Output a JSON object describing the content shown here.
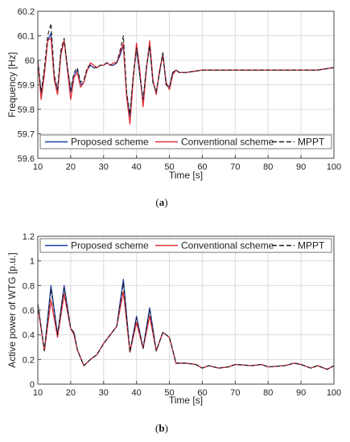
{
  "chart_data": [
    {
      "type": "line",
      "caption_letter": "a",
      "xlabel": "Time [s]",
      "ylabel": "Frequency [Hz]",
      "xlim": [
        10,
        100
      ],
      "ylim": [
        59.6,
        60.2
      ],
      "xticks": [
        "10",
        "20",
        "30",
        "40",
        "50",
        "60",
        "70",
        "80",
        "90",
        "100"
      ],
      "yticks": [
        "59.6",
        "59.7",
        "59.8",
        "59.9",
        "60",
        "60.1",
        "60.2"
      ],
      "grid": true,
      "legend_position": "bottom",
      "series": [
        {
          "name": "Proposed scheme",
          "color": "#1f3fa6",
          "dash": "solid",
          "x": [
            10,
            11,
            12,
            13,
            14,
            15,
            16,
            17,
            18,
            19,
            20,
            21,
            22,
            23,
            24,
            25,
            26,
            27,
            28,
            29,
            30,
            31,
            32,
            33,
            34,
            35,
            36,
            37,
            38,
            39,
            40,
            41,
            42,
            43,
            44,
            45,
            46,
            47,
            48,
            49,
            50,
            51,
            52,
            53,
            55,
            60,
            65,
            70,
            75,
            80,
            85,
            90,
            95,
            100
          ],
          "y": [
            60.0,
            59.86,
            59.95,
            60.08,
            60.11,
            59.93,
            59.87,
            60.03,
            60.08,
            59.97,
            59.87,
            59.94,
            59.96,
            59.9,
            59.91,
            59.96,
            59.98,
            59.97,
            59.97,
            59.98,
            59.98,
            59.99,
            59.98,
            59.98,
            59.99,
            60.02,
            60.06,
            59.86,
            59.77,
            59.93,
            60.05,
            59.94,
            59.83,
            59.97,
            60.06,
            59.91,
            59.87,
            59.95,
            60.03,
            59.9,
            59.89,
            59.95,
            59.96,
            59.95,
            59.95,
            59.96,
            59.96,
            59.96,
            59.96,
            59.96,
            59.96,
            59.96,
            59.96,
            59.97
          ]
        },
        {
          "name": "Conventional scheme",
          "color": "#e0303a",
          "dash": "solid",
          "x": [
            10,
            11,
            12,
            13,
            14,
            15,
            16,
            17,
            18,
            19,
            20,
            21,
            22,
            23,
            24,
            25,
            26,
            27,
            28,
            29,
            30,
            31,
            32,
            33,
            34,
            35,
            36,
            37,
            38,
            39,
            40,
            41,
            42,
            43,
            44,
            45,
            46,
            47,
            48,
            49,
            50,
            51,
            52,
            53,
            55,
            60,
            65,
            70,
            75,
            80,
            85,
            90,
            95,
            100
          ],
          "y": [
            60.0,
            59.84,
            59.94,
            60.08,
            60.09,
            59.92,
            59.86,
            60.02,
            60.08,
            59.96,
            59.84,
            59.93,
            59.95,
            59.89,
            59.91,
            59.96,
            59.99,
            59.98,
            59.97,
            59.98,
            59.98,
            59.99,
            59.98,
            59.99,
            59.99,
            60.03,
            60.07,
            59.85,
            59.74,
            59.92,
            60.07,
            59.96,
            59.81,
            59.96,
            60.08,
            59.92,
            59.86,
            59.96,
            60.02,
            59.91,
            59.88,
            59.94,
            59.96,
            59.95,
            59.95,
            59.96,
            59.96,
            59.96,
            59.96,
            59.96,
            59.96,
            59.96,
            59.96,
            59.97
          ]
        },
        {
          "name": "MPPT",
          "color": "#1a1a1a",
          "dash": "dashed",
          "x": [
            10,
            11,
            12,
            13,
            14,
            15,
            16,
            17,
            18,
            19,
            20,
            21,
            22,
            23,
            24,
            25,
            26,
            27,
            28,
            29,
            30,
            31,
            32,
            33,
            34,
            35,
            36,
            37,
            38,
            39,
            40,
            41,
            42,
            43,
            44,
            45,
            46,
            47,
            48,
            49,
            50,
            51,
            52,
            53,
            55,
            60,
            65,
            70,
            75,
            80,
            85,
            90,
            95,
            100
          ],
          "y": [
            60.0,
            59.87,
            59.97,
            60.1,
            60.15,
            59.94,
            59.88,
            60.04,
            60.09,
            59.97,
            59.88,
            59.95,
            59.97,
            59.91,
            59.92,
            59.97,
            59.98,
            59.97,
            59.97,
            59.98,
            59.98,
            59.99,
            59.98,
            59.98,
            59.99,
            60.04,
            60.1,
            59.87,
            59.78,
            59.94,
            60.05,
            59.94,
            59.84,
            59.97,
            60.06,
            59.91,
            59.87,
            59.95,
            60.03,
            59.9,
            59.89,
            59.95,
            59.96,
            59.95,
            59.95,
            59.96,
            59.96,
            59.96,
            59.96,
            59.96,
            59.96,
            59.96,
            59.96,
            59.97
          ]
        }
      ]
    },
    {
      "type": "line",
      "caption_letter": "b",
      "xlabel": "Time [s]",
      "ylabel": "Active power of WTG [p.u.]",
      "xlim": [
        10,
        100
      ],
      "ylim": [
        0,
        1.2
      ],
      "xticks": [
        "10",
        "20",
        "30",
        "40",
        "50",
        "60",
        "70",
        "80",
        "90",
        "100"
      ],
      "yticks": [
        "0",
        "0.2",
        "0.4",
        "0.6",
        "0.8",
        "1",
        "1.2"
      ],
      "grid": true,
      "legend_position": "top",
      "series": [
        {
          "name": "Proposed scheme",
          "color": "#1f3fa6",
          "dash": "solid",
          "x": [
            10,
            12,
            14,
            16,
            18,
            20,
            21,
            22,
            24,
            26,
            28,
            30,
            32,
            34,
            36,
            38,
            40,
            42,
            44,
            46,
            48,
            50,
            52,
            55,
            58,
            60,
            62,
            65,
            68,
            70,
            75,
            78,
            80,
            85,
            88,
            90,
            93,
            95,
            98,
            100
          ],
          "y": [
            0.65,
            0.27,
            0.8,
            0.4,
            0.8,
            0.45,
            0.42,
            0.28,
            0.15,
            0.2,
            0.24,
            0.33,
            0.4,
            0.47,
            0.85,
            0.26,
            0.55,
            0.29,
            0.62,
            0.27,
            0.42,
            0.38,
            0.17,
            0.17,
            0.16,
            0.13,
            0.15,
            0.13,
            0.14,
            0.16,
            0.15,
            0.16,
            0.14,
            0.15,
            0.17,
            0.16,
            0.13,
            0.15,
            0.12,
            0.15
          ]
        },
        {
          "name": "Conventional scheme",
          "color": "#e0303a",
          "dash": "solid",
          "x": [
            10,
            12,
            14,
            16,
            18,
            20,
            21,
            22,
            24,
            26,
            28,
            30,
            32,
            34,
            36,
            38,
            40,
            42,
            44,
            46,
            48,
            50,
            52,
            55,
            58,
            60,
            62,
            65,
            68,
            70,
            75,
            78,
            80,
            85,
            88,
            90,
            93,
            95,
            98,
            100
          ],
          "y": [
            0.63,
            0.27,
            0.68,
            0.38,
            0.73,
            0.45,
            0.4,
            0.28,
            0.15,
            0.2,
            0.24,
            0.33,
            0.4,
            0.47,
            0.75,
            0.26,
            0.5,
            0.29,
            0.55,
            0.27,
            0.42,
            0.38,
            0.17,
            0.17,
            0.16,
            0.13,
            0.15,
            0.13,
            0.14,
            0.16,
            0.15,
            0.16,
            0.14,
            0.15,
            0.17,
            0.16,
            0.13,
            0.15,
            0.12,
            0.15
          ]
        },
        {
          "name": "MPPT",
          "color": "#1a1a1a",
          "dash": "dashed",
          "x": [
            10,
            12,
            14,
            16,
            18,
            20,
            21,
            22,
            24,
            26,
            28,
            30,
            32,
            34,
            36,
            38,
            40,
            42,
            44,
            46,
            48,
            50,
            52,
            55,
            58,
            60,
            62,
            65,
            68,
            70,
            75,
            78,
            80,
            85,
            88,
            90,
            93,
            95,
            98,
            100
          ],
          "y": [
            0.65,
            0.27,
            0.77,
            0.4,
            0.78,
            0.45,
            0.42,
            0.28,
            0.15,
            0.2,
            0.24,
            0.33,
            0.4,
            0.47,
            0.82,
            0.26,
            0.54,
            0.29,
            0.6,
            0.27,
            0.42,
            0.38,
            0.17,
            0.17,
            0.16,
            0.13,
            0.15,
            0.13,
            0.14,
            0.16,
            0.15,
            0.16,
            0.14,
            0.15,
            0.17,
            0.16,
            0.13,
            0.15,
            0.12,
            0.15
          ]
        }
      ]
    }
  ]
}
